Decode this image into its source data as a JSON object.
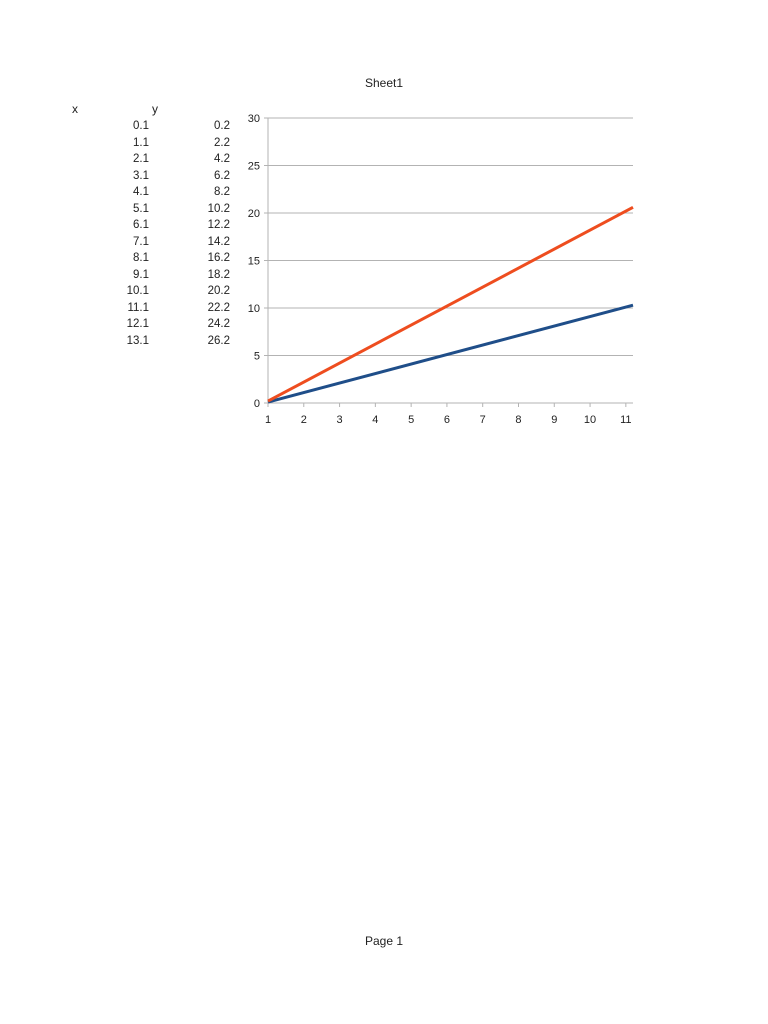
{
  "page": {
    "title": "Sheet1",
    "footer": "Page 1"
  },
  "table": {
    "headers": {
      "x": "x",
      "y": "y"
    },
    "rows": [
      {
        "x": "0.1",
        "y": "0.2"
      },
      {
        "x": "1.1",
        "y": "2.2"
      },
      {
        "x": "2.1",
        "y": "4.2"
      },
      {
        "x": "3.1",
        "y": "6.2"
      },
      {
        "x": "4.1",
        "y": "8.2"
      },
      {
        "x": "5.1",
        "y": "10.2"
      },
      {
        "x": "6.1",
        "y": "12.2"
      },
      {
        "x": "7.1",
        "y": "14.2"
      },
      {
        "x": "8.1",
        "y": "16.2"
      },
      {
        "x": "9.1",
        "y": "18.2"
      },
      {
        "x": "10.1",
        "y": "20.2"
      },
      {
        "x": "11.1",
        "y": "22.2"
      },
      {
        "x": "12.1",
        "y": "24.2"
      },
      {
        "x": "13.1",
        "y": "26.2"
      }
    ]
  },
  "chart_data": {
    "type": "line",
    "title": "",
    "xlabel": "",
    "ylabel": "",
    "categories": [
      1,
      2,
      3,
      4,
      5,
      6,
      7,
      8,
      9,
      10,
      11
    ],
    "xlim": [
      1,
      11.2
    ],
    "ylim": [
      0,
      30
    ],
    "yticks": [
      0,
      5,
      10,
      15,
      20,
      25,
      30
    ],
    "grid": "horizontal",
    "legend": "none",
    "series": [
      {
        "color": "#1f4e89",
        "x": [
          1,
          11.2
        ],
        "y": [
          0.1,
          10.3
        ]
      },
      {
        "color": "#ee4d1f",
        "x": [
          1,
          11.2
        ],
        "y": [
          0.2,
          20.6
        ]
      }
    ]
  }
}
